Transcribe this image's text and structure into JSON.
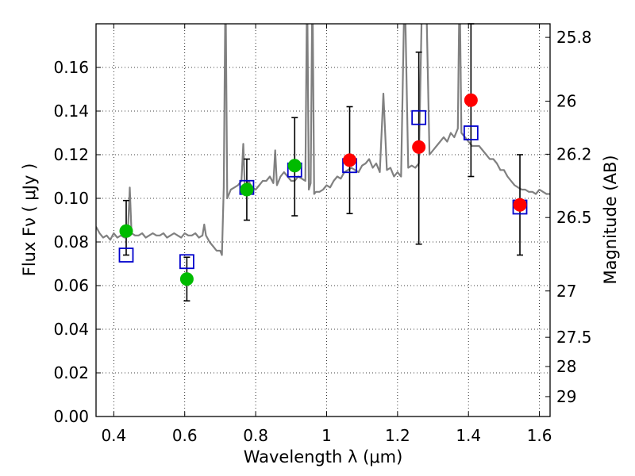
{
  "chart_data": {
    "type": "scatter",
    "xlabel": "Wavelength  λ (μm)",
    "ylabel": "Flux  Fν  ( μJy )",
    "y2label": "Magnitude (AB)",
    "xlim": [
      0.35,
      1.63
    ],
    "ylim": [
      0.0,
      0.18
    ],
    "grid": true,
    "x_ticks": [
      "0.4",
      "0.6",
      "0.8",
      "1",
      "1.2",
      "1.4",
      "1.6"
    ],
    "y_ticks": [
      "0.00",
      "0.02",
      "0.04",
      "0.06",
      "0.08",
      "0.10",
      "0.12",
      "0.14",
      "0.16"
    ],
    "y2_ticks": [
      {
        "label": "25.8",
        "mag": 25.8
      },
      {
        "label": "26",
        "mag": 26.0
      },
      {
        "label": "26.2",
        "mag": 26.2
      },
      {
        "label": "26.5",
        "mag": 26.5
      },
      {
        "label": "27",
        "mag": 27.0
      },
      {
        "label": "27.5",
        "mag": 27.5
      },
      {
        "label": "28",
        "mag": 28.0
      },
      {
        "label": "29",
        "mag": 29.0
      }
    ],
    "colors": {
      "model": "#808080",
      "green": "#00bb00",
      "red": "#ff0000",
      "square": "#0000cc",
      "errorbar": "#000000",
      "grid": "#000000"
    },
    "model_spectrum": {
      "x": [
        0.35,
        0.36,
        0.37,
        0.38,
        0.39,
        0.4,
        0.41,
        0.42,
        0.43,
        0.44,
        0.445,
        0.45,
        0.46,
        0.47,
        0.48,
        0.49,
        0.5,
        0.51,
        0.52,
        0.53,
        0.54,
        0.55,
        0.56,
        0.57,
        0.58,
        0.59,
        0.6,
        0.61,
        0.62,
        0.63,
        0.64,
        0.65,
        0.655,
        0.66,
        0.67,
        0.68,
        0.69,
        0.7,
        0.705,
        0.71,
        0.715,
        0.72,
        0.73,
        0.74,
        0.75,
        0.76,
        0.765,
        0.77,
        0.78,
        0.79,
        0.8,
        0.81,
        0.82,
        0.83,
        0.84,
        0.85,
        0.855,
        0.86,
        0.87,
        0.88,
        0.89,
        0.9,
        0.91,
        0.92,
        0.93,
        0.94,
        0.945,
        0.95,
        0.955,
        0.96,
        0.965,
        0.97,
        0.98,
        0.99,
        1.0,
        1.01,
        1.02,
        1.03,
        1.04,
        1.05,
        1.06,
        1.07,
        1.08,
        1.09,
        1.1,
        1.11,
        1.12,
        1.13,
        1.14,
        1.15,
        1.16,
        1.17,
        1.18,
        1.19,
        1.2,
        1.21,
        1.22,
        1.23,
        1.24,
        1.25,
        1.26,
        1.27,
        1.28,
        1.29,
        1.3,
        1.31,
        1.32,
        1.33,
        1.34,
        1.35,
        1.36,
        1.37,
        1.375,
        1.38,
        1.39,
        1.4,
        1.41,
        1.42,
        1.43,
        1.44,
        1.45,
        1.46,
        1.47,
        1.48,
        1.49,
        1.5,
        1.51,
        1.52,
        1.53,
        1.54,
        1.55,
        1.56,
        1.57,
        1.58,
        1.59,
        1.6,
        1.61,
        1.62,
        1.63
      ],
      "y": [
        0.087,
        0.084,
        0.082,
        0.083,
        0.081,
        0.084,
        0.082,
        0.083,
        0.082,
        0.085,
        0.105,
        0.084,
        0.083,
        0.083,
        0.084,
        0.082,
        0.083,
        0.084,
        0.083,
        0.083,
        0.084,
        0.082,
        0.083,
        0.084,
        0.083,
        0.082,
        0.084,
        0.083,
        0.083,
        0.084,
        0.082,
        0.083,
        0.088,
        0.083,
        0.08,
        0.078,
        0.076,
        0.076,
        0.074,
        0.105,
        0.2,
        0.1,
        0.104,
        0.105,
        0.106,
        0.108,
        0.125,
        0.103,
        0.108,
        0.105,
        0.104,
        0.106,
        0.108,
        0.108,
        0.11,
        0.107,
        0.122,
        0.106,
        0.11,
        0.112,
        0.11,
        0.108,
        0.108,
        0.11,
        0.109,
        0.108,
        0.2,
        0.104,
        0.107,
        0.2,
        0.102,
        0.103,
        0.103,
        0.104,
        0.106,
        0.105,
        0.108,
        0.11,
        0.109,
        0.112,
        0.113,
        0.114,
        0.113,
        0.112,
        0.115,
        0.116,
        0.118,
        0.114,
        0.116,
        0.112,
        0.148,
        0.113,
        0.114,
        0.11,
        0.112,
        0.11,
        0.2,
        0.114,
        0.115,
        0.114,
        0.116,
        0.2,
        0.2,
        0.12,
        0.122,
        0.124,
        0.126,
        0.128,
        0.126,
        0.13,
        0.128,
        0.132,
        0.2,
        0.13,
        0.128,
        0.126,
        0.124,
        0.124,
        0.124,
        0.122,
        0.12,
        0.118,
        0.118,
        0.116,
        0.113,
        0.113,
        0.11,
        0.108,
        0.106,
        0.105,
        0.104,
        0.104,
        0.103,
        0.103,
        0.102,
        0.104,
        0.103,
        0.102,
        0.102
      ]
    },
    "green_points": [
      {
        "x": 0.435,
        "y": 0.085
      },
      {
        "x": 0.606,
        "y": 0.063
      },
      {
        "x": 0.775,
        "y": 0.104
      },
      {
        "x": 0.91,
        "y": 0.115
      }
    ],
    "red_points": [
      {
        "x": 1.065,
        "y": 0.1175
      },
      {
        "x": 1.26,
        "y": 0.1235
      },
      {
        "x": 1.407,
        "y": 0.145
      },
      {
        "x": 1.545,
        "y": 0.097
      }
    ],
    "observed": [
      {
        "x": 0.435,
        "y": 0.074,
        "ylo": 0.074,
        "yhi": 0.099
      },
      {
        "x": 0.606,
        "y": 0.071,
        "ylo": 0.053,
        "yhi": 0.073
      },
      {
        "x": 0.775,
        "y": 0.105,
        "ylo": 0.09,
        "yhi": 0.118
      },
      {
        "x": 0.91,
        "y": 0.113,
        "ylo": 0.092,
        "yhi": 0.137
      },
      {
        "x": 1.065,
        "y": 0.115,
        "ylo": 0.093,
        "yhi": 0.142
      },
      {
        "x": 1.26,
        "y": 0.137,
        "ylo": 0.079,
        "yhi": 0.167
      },
      {
        "x": 1.407,
        "y": 0.13,
        "ylo": 0.11,
        "yhi": 0.18
      },
      {
        "x": 1.545,
        "y": 0.096,
        "ylo": 0.074,
        "yhi": 0.12
      }
    ]
  }
}
